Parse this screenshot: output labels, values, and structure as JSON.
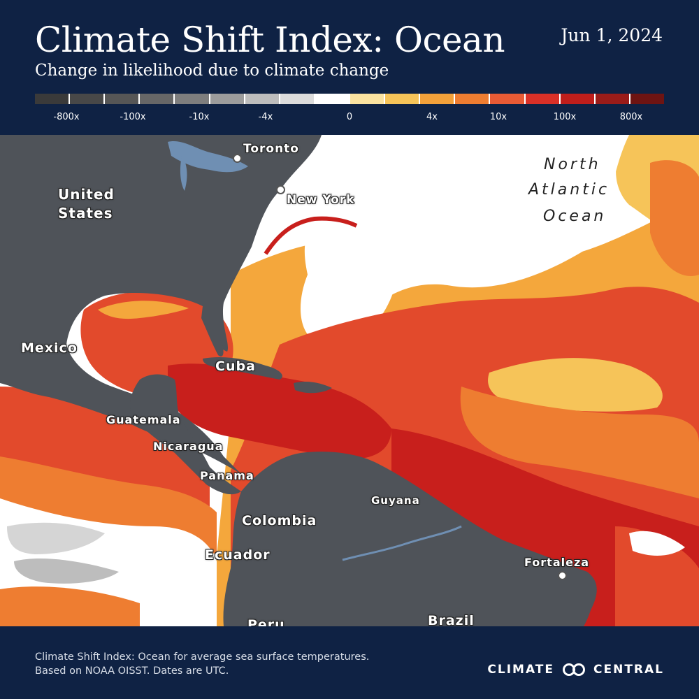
{
  "title": "Climate Shift Index: Ocean",
  "date": "Jun 1, 2024",
  "subtitle": "Change in likelihood due to climate change",
  "legend": {
    "colors": [
      "#3a3a3a",
      "#484848",
      "#565656",
      "#676767",
      "#7e7e7e",
      "#9c9c9c",
      "#bdbdbd",
      "#dcdcdc",
      "#ffffff",
      "#fbe3a0",
      "#f6c459",
      "#f3a13a",
      "#ee7d31",
      "#e95b35",
      "#d93027",
      "#bf1e1b",
      "#9a1c19",
      "#6e1412"
    ],
    "labels": [
      "-800x",
      "-100x",
      "-10x",
      "-4x",
      "0",
      "4x",
      "10x",
      "100x",
      "800x"
    ]
  },
  "map": {
    "places": {
      "toronto": "Toronto",
      "new_york": "New York",
      "united_states_1": "United",
      "united_states_2": "States",
      "mexico": "Mexico",
      "cuba": "Cuba",
      "guatemala": "Guatemala",
      "nicaragua": "Nicaragua",
      "panama": "Panama",
      "colombia": "Colombia",
      "ecuador": "Ecuador",
      "guyana": "Guyana",
      "fortaleza": "Fortaleza",
      "brazil": "Brazil",
      "peru": "Peru"
    },
    "ocean": [
      "North",
      "Atlantic",
      "Ocean"
    ],
    "colors": {
      "land": "#4f5359",
      "lakes": "#6f8fb3",
      "warm_light": "#f4a73c",
      "warm_mid": "#ee7d31",
      "warm_strong": "#e24a2c",
      "warm_deep": "#c81f1c",
      "neutral": "#ffffff",
      "cool_light": "#d5d5d5"
    }
  },
  "footer": {
    "line1": "Climate Shift Index: Ocean for average sea surface temperatures.",
    "line2": "Based on NOAA OISST. Dates are UTC.",
    "logo_left": "CLIMATE",
    "logo_right": "CENTRAL"
  }
}
